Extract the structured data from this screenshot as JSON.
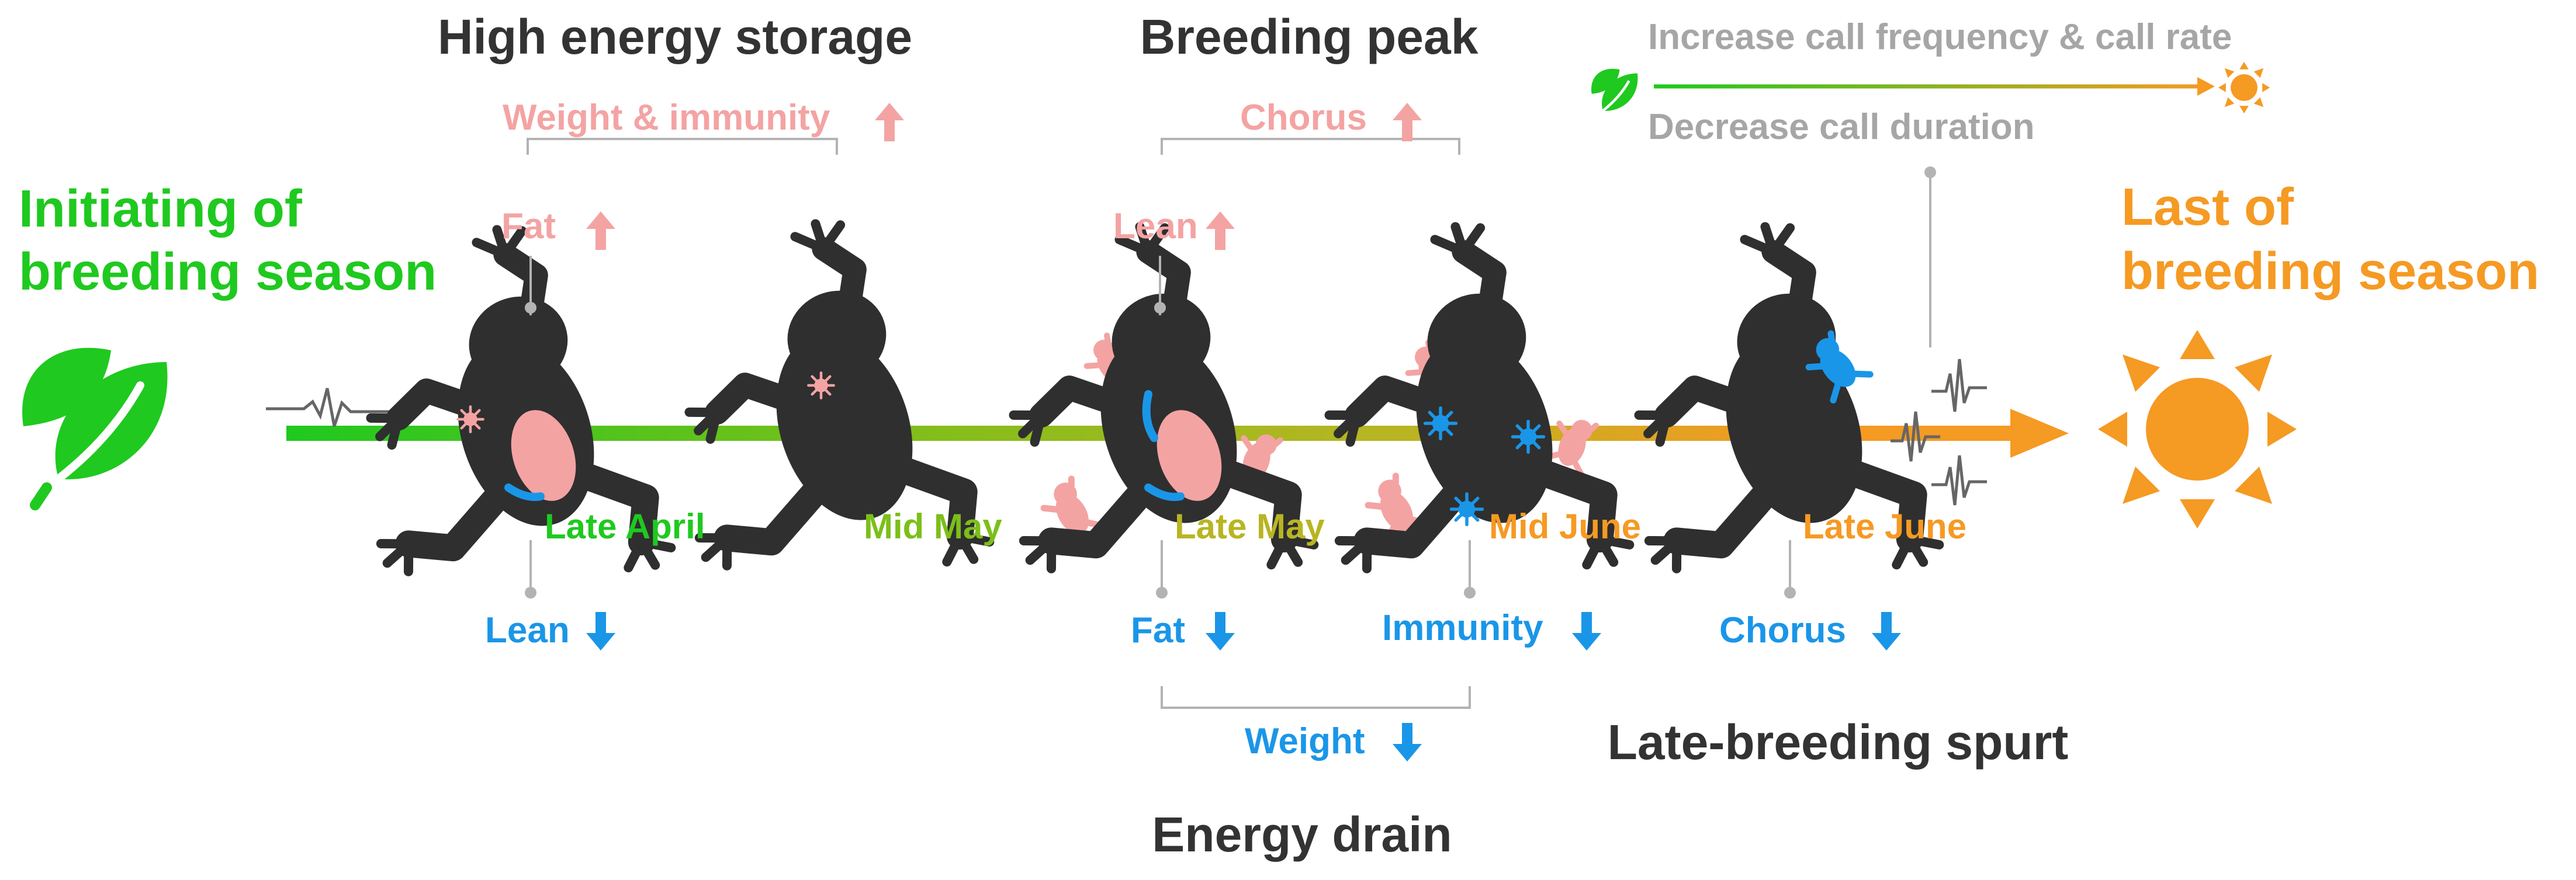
{
  "colors": {
    "green": "#1fc91f",
    "lime": "#7cbf1a",
    "olive": "#b8b522",
    "orange": "#f59a23",
    "pink": "#f4a3a3",
    "blue": "#1a96e8",
    "dark": "#333333",
    "gray": "#a6a6a6",
    "frog": "#2f2f2f"
  },
  "headings": {
    "high_energy": "High energy storage",
    "breeding_peak": "Breeding peak",
    "energy_drain": "Energy drain",
    "late_spurt": "Late-breeding spurt"
  },
  "start": {
    "line1": "Initiating of",
    "line2": "breeding season",
    "icon": "leaf-icon"
  },
  "end": {
    "line1": "Last of",
    "line2": "breeding season",
    "icon": "sun-icon"
  },
  "legend": {
    "top": "Increase call frequency & call rate",
    "bottom": "Decrease call duration",
    "start_icon": "leaf-icon",
    "end_icon": "sun-icon"
  },
  "timeline": [
    {
      "label": "Late April",
      "color": "#1fc91f"
    },
    {
      "label": "Mid May",
      "color": "#7cbf1a"
    },
    {
      "label": "Late May",
      "color": "#b8b522"
    },
    {
      "label": "Mid June",
      "color": "#f59a23"
    },
    {
      "label": "Late June",
      "color": "#f59a23"
    }
  ],
  "increases": {
    "weight_immunity": "Weight & immunity",
    "fat": "Fat",
    "chorus": "Chorus",
    "lean": "Lean"
  },
  "decreases": {
    "lean": "Lean",
    "fat": "Fat",
    "immunity": "Immunity",
    "chorus": "Chorus",
    "weight": "Weight"
  }
}
